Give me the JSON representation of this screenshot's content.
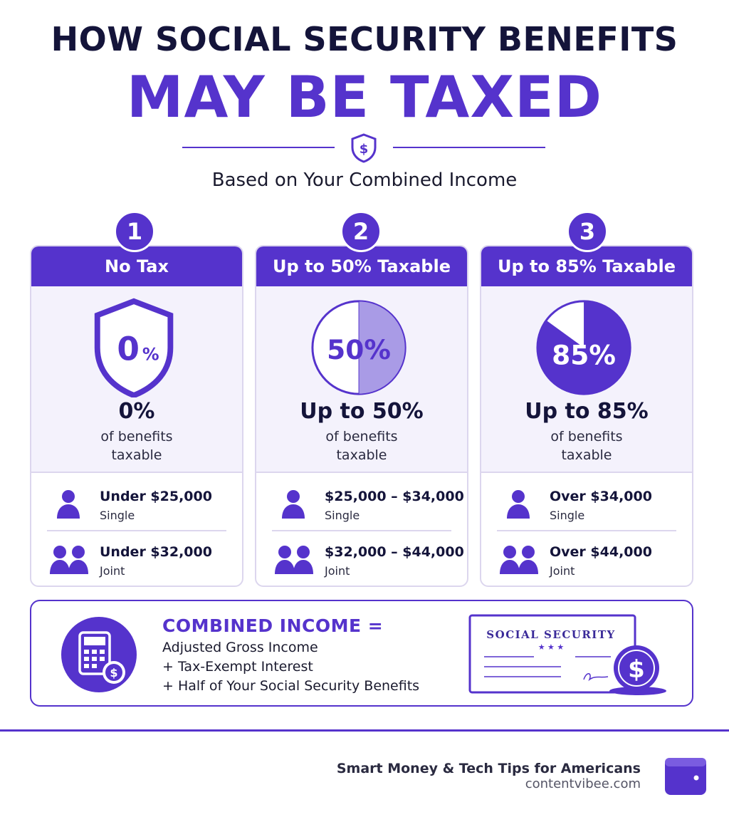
{
  "header": {
    "title_line1": "HOW SOCIAL SECURITY BENEFITS",
    "title_line2": "MAY BE TAXED",
    "subtitle": "Based on Your Combined Income",
    "emblem_symbol": "$"
  },
  "colors": {
    "accent": "#5533cc",
    "dark": "#14143a",
    "light_panel": "#f4f2fc",
    "border": "#dcd6ee"
  },
  "tiers": [
    {
      "number": "1",
      "heading": "No Tax",
      "graphic_label": "0",
      "graphic_suffix": "%",
      "graphic_type": "shield",
      "taxable_fraction": 0,
      "big_text": "0%",
      "desc_line1": "of benefits",
      "desc_line2": "taxable",
      "single_amount": "Under $25,000",
      "single_label": "Single",
      "joint_amount": "Under $32,000",
      "joint_label": "Joint"
    },
    {
      "number": "2",
      "heading": "Up to 50% Taxable",
      "graphic_label": "50%",
      "graphic_type": "pie",
      "taxable_fraction": 0.5,
      "big_text": "Up to 50%",
      "desc_line1": "of benefits",
      "desc_line2": "taxable",
      "single_amount": "$25,000 – $34,000",
      "single_label": "Single",
      "joint_amount": "$32,000 – $44,000",
      "joint_label": "Joint"
    },
    {
      "number": "3",
      "heading": "Up to 85% Taxable",
      "graphic_label": "85%",
      "graphic_type": "pie",
      "taxable_fraction": 0.85,
      "big_text": "Up to 85%",
      "desc_line1": "of benefits",
      "desc_line2": "taxable",
      "single_amount": "Over $34,000",
      "single_label": "Single",
      "joint_amount": "Over $44,000",
      "joint_label": "Joint"
    }
  ],
  "icons": {
    "single": "person-icon",
    "joint": "two-people-icon",
    "calculator": "calculator-icon",
    "card": "social-security-card-icon",
    "wallet": "wallet-icon"
  },
  "formula": {
    "title": "COMBINED INCOME =",
    "line1": "Adjusted Gross Income",
    "line2": "+ Tax-Exempt Interest",
    "line3": "+ Half of Your Social Security Benefits",
    "card_title": "SOCIAL SECURITY",
    "card_stars": "★ ★ ★",
    "coin_symbol": "$"
  },
  "footer": {
    "tagline": "Smart Money & Tech Tips for Americans",
    "site": "contentvibee.com"
  }
}
